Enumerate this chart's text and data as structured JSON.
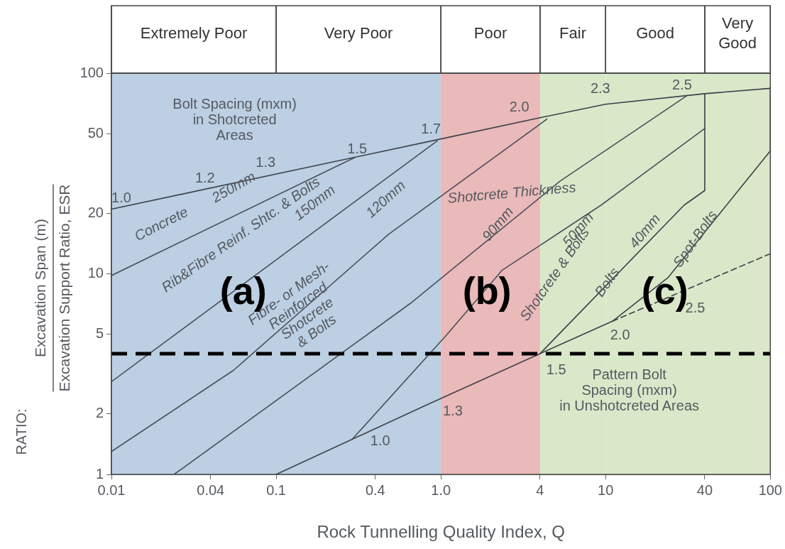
{
  "chart_data": {
    "type": "line",
    "xlabel": "Rock Tunnelling Quality Index, Q",
    "ylabel": "Excavation Span (m)\nExcavation Support Ratio, ESR",
    "log": "xy",
    "xlim": [
      0.01,
      100
    ],
    "ylim": [
      1,
      100
    ],
    "xticks": [
      0.01,
      0.04,
      0.1,
      0.4,
      {
        "value": 1,
        "label": "1.0"
      },
      4,
      10,
      40,
      100
    ],
    "yticks": [
      1,
      2,
      5,
      10,
      20,
      50,
      100
    ],
    "marker": "none",
    "line_style": "solid",
    "series": [
      {
        "color": "#3c4148",
        "x": [
          0.01,
          1,
          4,
          10,
          40,
          100
        ],
        "values": [
          21,
          47,
          60,
          70,
          79,
          84
        ]
      },
      {
        "color": "#3c4148",
        "x": [
          4,
          30,
          40,
          40
        ],
        "values": [
          4,
          22,
          26,
          79
        ]
      },
      {
        "color": "#3c4148",
        "x": [
          0.1,
          0.8,
          4,
          11,
          24,
          100,
          100
        ],
        "values": [
          1,
          2.2,
          4,
          5.8,
          9.6,
          41,
          84
        ]
      },
      {
        "color": "#3c4148",
        "line_style": "dashed",
        "x": [
          11,
          100
        ],
        "values": [
          5.8,
          12.6
        ]
      },
      {
        "color": "#4a5058",
        "x": [
          0.01,
          0.3
        ],
        "values": [
          9.8,
          38
        ]
      },
      {
        "color": "#4a5058",
        "x": [
          0.01,
          0.95
        ],
        "values": [
          2.9,
          46
        ]
      },
      {
        "color": "#4a5058",
        "x": [
          0.01,
          0.055,
          0.48,
          4.4
        ],
        "values": [
          1.3,
          3.3,
          15.7,
          59
        ]
      },
      {
        "color": "#4a5058",
        "x": [
          0.024,
          0.65,
          5.3,
          31
        ],
        "values": [
          1,
          7.1,
          29,
          77
        ]
      },
      {
        "color": "#4a5058",
        "x": [
          0.29,
          1.07,
          2.35,
          9.4,
          40
        ],
        "values": [
          1.5,
          4.9,
          10.4,
          22,
          53
        ]
      }
    ],
    "bands": [
      {
        "axis": "x",
        "from": 0.01,
        "to": 0.1,
        "color": "#bccfe3",
        "label": "Extremely Poor"
      },
      {
        "axis": "x",
        "from": 0.1,
        "to": 1,
        "color": "#bccfe3",
        "label": "Very Poor"
      },
      {
        "axis": "x",
        "from": 1,
        "to": 4,
        "color": "#eab9b9",
        "label": "Poor"
      },
      {
        "axis": "x",
        "from": 4,
        "to": 10,
        "color": "#d9e8c9",
        "label": "Fair"
      },
      {
        "axis": "x",
        "from": 10,
        "to": 40,
        "color": "#d9e8c9",
        "label": "Good"
      },
      {
        "axis": "x",
        "from": 40,
        "to": 100,
        "color": "#d9e8c9",
        "label": "Very Good"
      }
    ],
    "ref_lines": [
      {
        "axis": "y",
        "value": 4,
        "color": "#000000",
        "line_style": "dashed"
      }
    ],
    "annotations": [
      "RATIO:",
      "Bolt Spacing (mxm)\nin Shotcreted\nAreas",
      "1.0",
      "1.2",
      "1.3",
      "1.5",
      "1.7",
      "2.0",
      "2.3",
      "2.5",
      "Concrete",
      "250mm",
      "Rib&Fibre Reinf. Shtc. & Bolts",
      "150mm",
      "120mm",
      "Shotcrete Thickness",
      "Fibre- or Mesh-\nReinforced\nShotcrete\n& Bolts",
      "90mm",
      "50mm",
      "Shotcrete & Bolts",
      "40mm",
      "Bolts",
      "Spot-Bolts",
      "1.0",
      "1.3",
      "1.5",
      "2.0",
      "2.5",
      "Pattern Bolt\nSpacing (mxm)\nin Unshotcreted Areas",
      "(a)",
      "(b)",
      "(c)"
    ]
  }
}
